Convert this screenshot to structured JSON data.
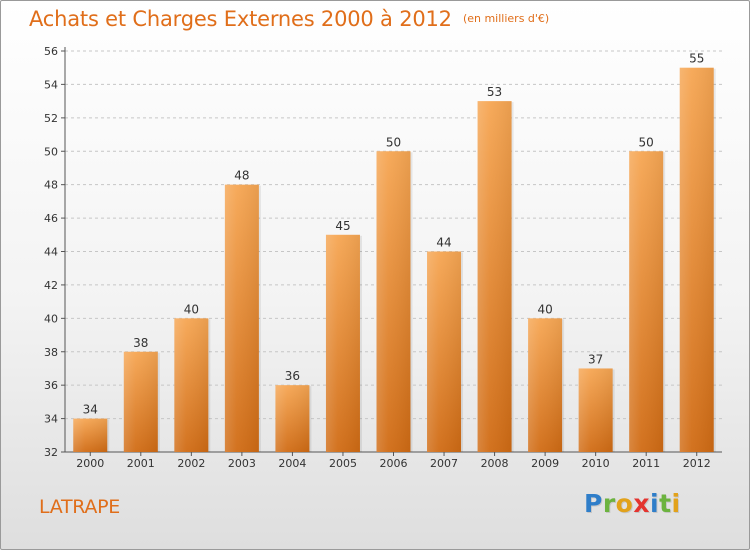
{
  "header": {
    "title": "Achats et Charges Externes 2000 à 2012",
    "unit": "(en milliers d'€)"
  },
  "commune": "LATRAPE",
  "logo": {
    "text": "Proxiti",
    "letters": [
      {
        "char": "P",
        "color": "#2f7ec9"
      },
      {
        "char": "r",
        "color": "#6cb33f"
      },
      {
        "char": "o",
        "color": "#e2a21b"
      },
      {
        "char": "x",
        "color": "#e4342f"
      },
      {
        "char": "i",
        "color": "#2f7ec9"
      },
      {
        "char": "t",
        "color": "#6cb33f"
      },
      {
        "char": "i",
        "color": "#e2a21b"
      }
    ]
  },
  "colors": {
    "accent": "#e06e1a",
    "bar_top": "#f6a653",
    "bar_bottom": "#d06b14",
    "grid": "#c6c6c6"
  },
  "chart_data": {
    "type": "bar",
    "categories": [
      "2000",
      "2001",
      "2002",
      "2003",
      "2004",
      "2005",
      "2006",
      "2007",
      "2008",
      "2009",
      "2010",
      "2011",
      "2012"
    ],
    "values": [
      34,
      38,
      40,
      48,
      36,
      45,
      50,
      44,
      53,
      40,
      37,
      50,
      55
    ],
    "ylim": [
      32,
      56
    ],
    "yticks": [
      32,
      34,
      36,
      38,
      40,
      42,
      44,
      46,
      48,
      50,
      52,
      54,
      56
    ],
    "grid": "horizontal dashed",
    "legend": "none",
    "data_labels": true
  }
}
